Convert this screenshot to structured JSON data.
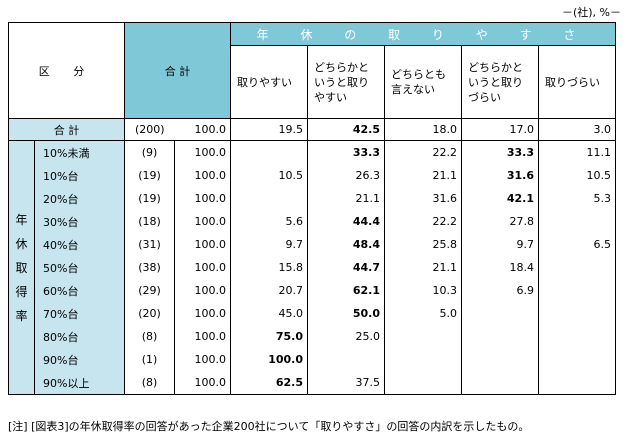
{
  "unit": "－(社), %－",
  "header": {
    "kubun": "区 分",
    "goukei": "合 計",
    "group": "年 休 の 取 り や す さ",
    "cols": [
      "取りやすい",
      "どちらかと\nいうと取り\nやすい",
      "どちらとも\n言えない",
      "どちらかと\nいうと取り\nづらい",
      "取りづらい"
    ]
  },
  "total_row": {
    "label": "合 計",
    "n": "(200)",
    "pct": "100.0",
    "vals": [
      "19.5",
      "42.5",
      "18.0",
      "17.0",
      "3.0"
    ]
  },
  "side_label": [
    "年",
    "休",
    "取",
    "得",
    "率"
  ],
  "rows": [
    {
      "label": "10%未満",
      "n": "(9)",
      "pct": "100.0",
      "vals": [
        "",
        "33.3",
        "22.2",
        "33.3",
        "11.1"
      ]
    },
    {
      "label": "10%台",
      "n": "(19)",
      "pct": "100.0",
      "vals": [
        "10.5",
        "26.3",
        "21.1",
        "31.6",
        "10.5"
      ]
    },
    {
      "label": "20%台",
      "n": "(19)",
      "pct": "100.0",
      "vals": [
        "",
        "21.1",
        "31.6",
        "42.1",
        "5.3"
      ]
    },
    {
      "label": "30%台",
      "n": "(18)",
      "pct": "100.0",
      "vals": [
        "5.6",
        "44.4",
        "22.2",
        "27.8",
        ""
      ]
    },
    {
      "label": "40%台",
      "n": "(31)",
      "pct": "100.0",
      "vals": [
        "9.7",
        "48.4",
        "25.8",
        "9.7",
        "6.5"
      ]
    },
    {
      "label": "50%台",
      "n": "(38)",
      "pct": "100.0",
      "vals": [
        "15.8",
        "44.7",
        "21.1",
        "18.4",
        ""
      ]
    },
    {
      "label": "60%台",
      "n": "(29)",
      "pct": "100.0",
      "vals": [
        "20.7",
        "62.1",
        "10.3",
        "6.9",
        ""
      ]
    },
    {
      "label": "70%台",
      "n": "(20)",
      "pct": "100.0",
      "vals": [
        "45.0",
        "50.0",
        "5.0",
        "",
        ""
      ]
    },
    {
      "label": "80%台",
      "n": "(8)",
      "pct": "100.0",
      "vals": [
        "75.0",
        "25.0",
        "",
        "",
        ""
      ]
    },
    {
      "label": "90%台",
      "n": "(1)",
      "pct": "100.0",
      "vals": [
        "100.0",
        "",
        "",
        "",
        ""
      ]
    },
    {
      "label": "90%以上",
      "n": "(8)",
      "pct": "100.0",
      "vals": [
        "62.5",
        "37.5",
        "",
        "",
        ""
      ]
    }
  ],
  "note": "[注] [図表3]の年休取得率の回答があった企業200社について「取りやすさ」の回答の内訳を示したもの。"
}
